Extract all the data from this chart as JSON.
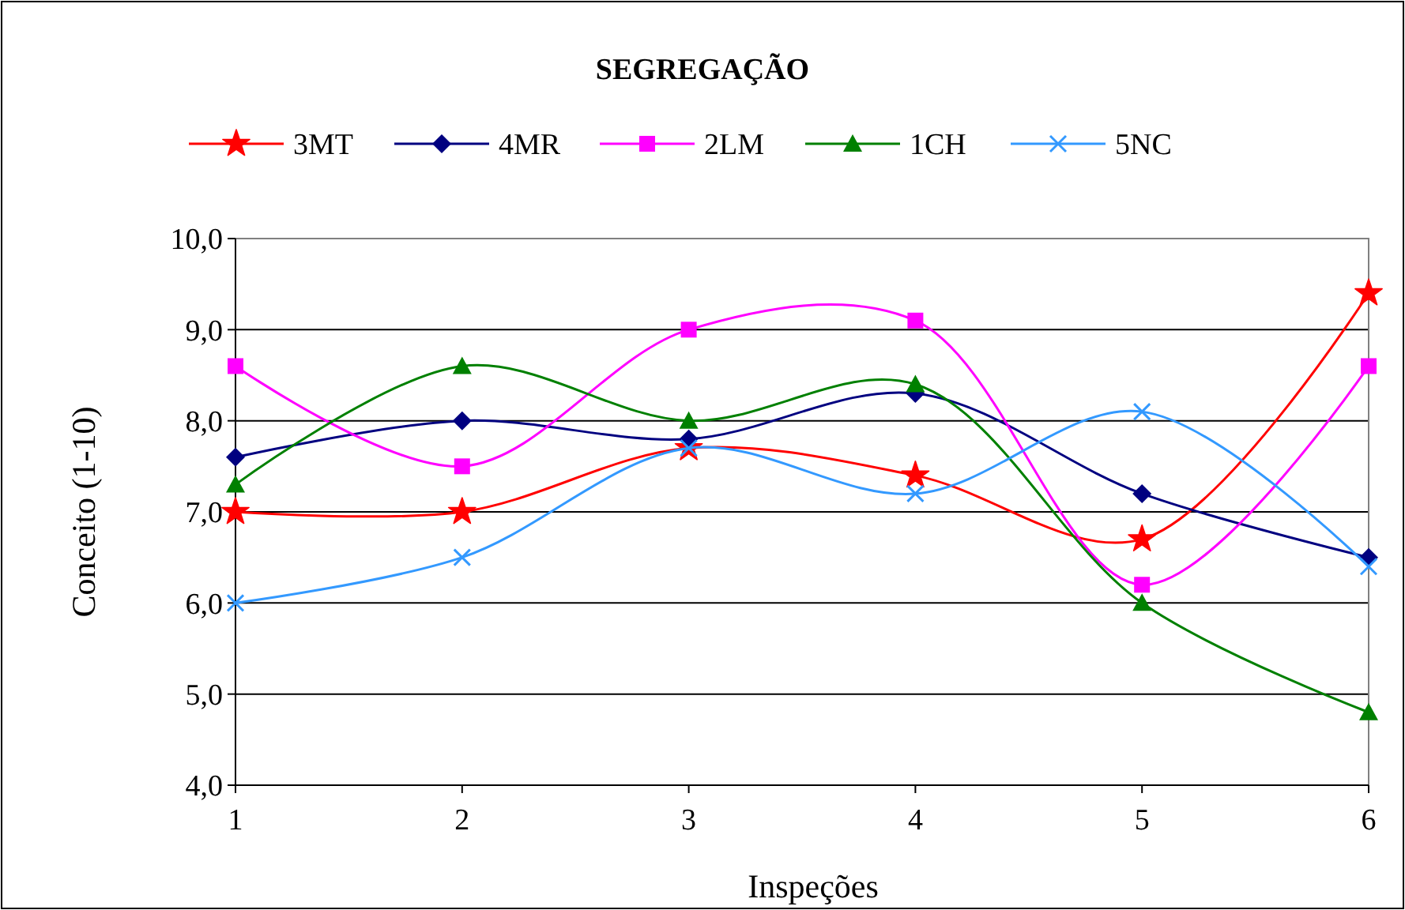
{
  "chart_data": {
    "type": "line",
    "title": "SEGREGAÇÃO",
    "xlabel": "Inspeções",
    "ylabel": "Conceito (1-10)",
    "x": [
      1,
      2,
      3,
      4,
      5,
      6
    ],
    "xlim": [
      1,
      6
    ],
    "xticks": [
      1,
      2,
      3,
      4,
      5,
      6
    ],
    "ylim": [
      4,
      10
    ],
    "yticks": [
      {
        "value": 4,
        "label": "4,0"
      },
      {
        "value": 5,
        "label": "5,0"
      },
      {
        "value": 6,
        "label": "6,0"
      },
      {
        "value": 7,
        "label": "7,0"
      },
      {
        "value": 8,
        "label": "8,0"
      },
      {
        "value": 9,
        "label": "9,0"
      },
      {
        "value": 10,
        "label": "10,0"
      }
    ],
    "grid": "y",
    "legend": "top",
    "series": [
      {
        "name": "3MT",
        "color": "#ff0000",
        "marker": "star",
        "values": [
          7.0,
          7.0,
          7.7,
          7.4,
          6.7,
          9.4
        ]
      },
      {
        "name": "4MR",
        "color": "#000080",
        "marker": "diamond",
        "values": [
          7.6,
          8.0,
          7.8,
          8.3,
          7.2,
          6.5
        ]
      },
      {
        "name": "2LM",
        "color": "#ff00ff",
        "marker": "square",
        "values": [
          8.6,
          7.5,
          9.0,
          9.1,
          6.2,
          8.6
        ]
      },
      {
        "name": "1CH",
        "color": "#008000",
        "marker": "triangle",
        "values": [
          7.3,
          8.6,
          8.0,
          8.4,
          6.0,
          4.8
        ]
      },
      {
        "name": "5NC",
        "color": "#3399ff",
        "marker": "cross",
        "values": [
          6.0,
          6.5,
          7.7,
          7.2,
          8.1,
          6.4
        ]
      }
    ]
  }
}
